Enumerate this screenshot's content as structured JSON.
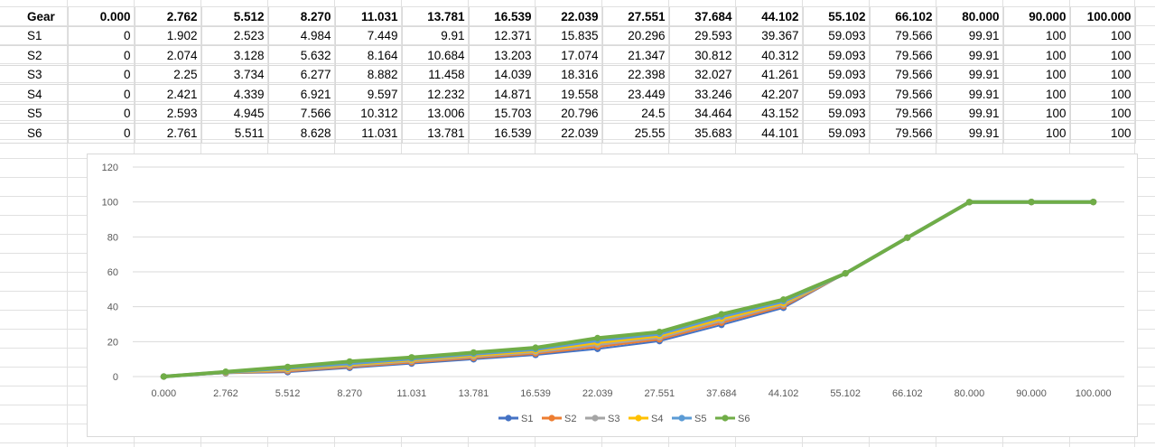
{
  "sheet": {
    "header": [
      "Gear",
      "0.000",
      "2.762",
      "5.512",
      "8.270",
      "11.031",
      "13.781",
      "16.539",
      "22.039",
      "27.551",
      "37.684",
      "44.102",
      "55.102",
      "66.102",
      "80.000",
      "90.000",
      "100.000"
    ],
    "rows": [
      [
        "S1",
        "0",
        "1.902",
        "2.523",
        "4.984",
        "7.449",
        "9.91",
        "12.371",
        "15.835",
        "20.296",
        "29.593",
        "39.367",
        "59.093",
        "79.566",
        "99.91",
        "100",
        "100"
      ],
      [
        "S2",
        "0",
        "2.074",
        "3.128",
        "5.632",
        "8.164",
        "10.684",
        "13.203",
        "17.074",
        "21.347",
        "30.812",
        "40.312",
        "59.093",
        "79.566",
        "99.91",
        "100",
        "100"
      ],
      [
        "S3",
        "0",
        "2.25",
        "3.734",
        "6.277",
        "8.882",
        "11.458",
        "14.039",
        "18.316",
        "22.398",
        "32.027",
        "41.261",
        "59.093",
        "79.566",
        "99.91",
        "100",
        "100"
      ],
      [
        "S4",
        "0",
        "2.421",
        "4.339",
        "6.921",
        "9.597",
        "12.232",
        "14.871",
        "19.558",
        "23.449",
        "33.246",
        "42.207",
        "59.093",
        "79.566",
        "99.91",
        "100",
        "100"
      ],
      [
        "S5",
        "0",
        "2.593",
        "4.945",
        "7.566",
        "10.312",
        "13.006",
        "15.703",
        "20.796",
        "24.5",
        "34.464",
        "43.152",
        "59.093",
        "79.566",
        "99.91",
        "100",
        "100"
      ],
      [
        "S6",
        "0",
        "2.761",
        "5.511",
        "8.628",
        "11.031",
        "13.781",
        "16.539",
        "22.039",
        "25.55",
        "35.683",
        "44.101",
        "59.093",
        "79.566",
        "99.91",
        "100",
        "100"
      ]
    ]
  },
  "chart_data": {
    "type": "line",
    "categories": [
      "0.000",
      "2.762",
      "5.512",
      "8.270",
      "11.031",
      "13.781",
      "16.539",
      "22.039",
      "27.551",
      "37.684",
      "44.102",
      "55.102",
      "66.102",
      "80.000",
      "90.000",
      "100.000"
    ],
    "ylim": [
      0,
      120
    ],
    "yticks": [
      0,
      20,
      40,
      60,
      80,
      100,
      120
    ],
    "grid": true,
    "legend": "bottom",
    "series": [
      {
        "name": "S1",
        "color": "#4472C4",
        "values": [
          0,
          1.902,
          2.523,
          4.984,
          7.449,
          9.91,
          12.371,
          15.835,
          20.296,
          29.593,
          39.367,
          59.093,
          79.566,
          99.91,
          100,
          100
        ]
      },
      {
        "name": "S2",
        "color": "#ED7D31",
        "values": [
          0,
          2.074,
          3.128,
          5.632,
          8.164,
          10.684,
          13.203,
          17.074,
          21.347,
          30.812,
          40.312,
          59.093,
          79.566,
          99.91,
          100,
          100
        ]
      },
      {
        "name": "S3",
        "color": "#A5A5A5",
        "values": [
          0,
          2.25,
          3.734,
          6.277,
          8.882,
          11.458,
          14.039,
          18.316,
          22.398,
          32.027,
          41.261,
          59.093,
          79.566,
          99.91,
          100,
          100
        ]
      },
      {
        "name": "S4",
        "color": "#FFC000",
        "values": [
          0,
          2.421,
          4.339,
          6.921,
          9.597,
          12.232,
          14.871,
          19.558,
          23.449,
          33.246,
          42.207,
          59.093,
          79.566,
          99.91,
          100,
          100
        ]
      },
      {
        "name": "S5",
        "color": "#5B9BD5",
        "values": [
          0,
          2.593,
          4.945,
          7.566,
          10.312,
          13.006,
          15.703,
          20.796,
          24.5,
          34.464,
          43.152,
          59.093,
          79.566,
          99.91,
          100,
          100
        ]
      },
      {
        "name": "S6",
        "color": "#70AD47",
        "values": [
          0,
          2.761,
          5.511,
          8.628,
          11.031,
          13.781,
          16.539,
          22.039,
          25.55,
          35.683,
          44.101,
          59.093,
          79.566,
          99.91,
          100,
          100
        ]
      }
    ]
  }
}
